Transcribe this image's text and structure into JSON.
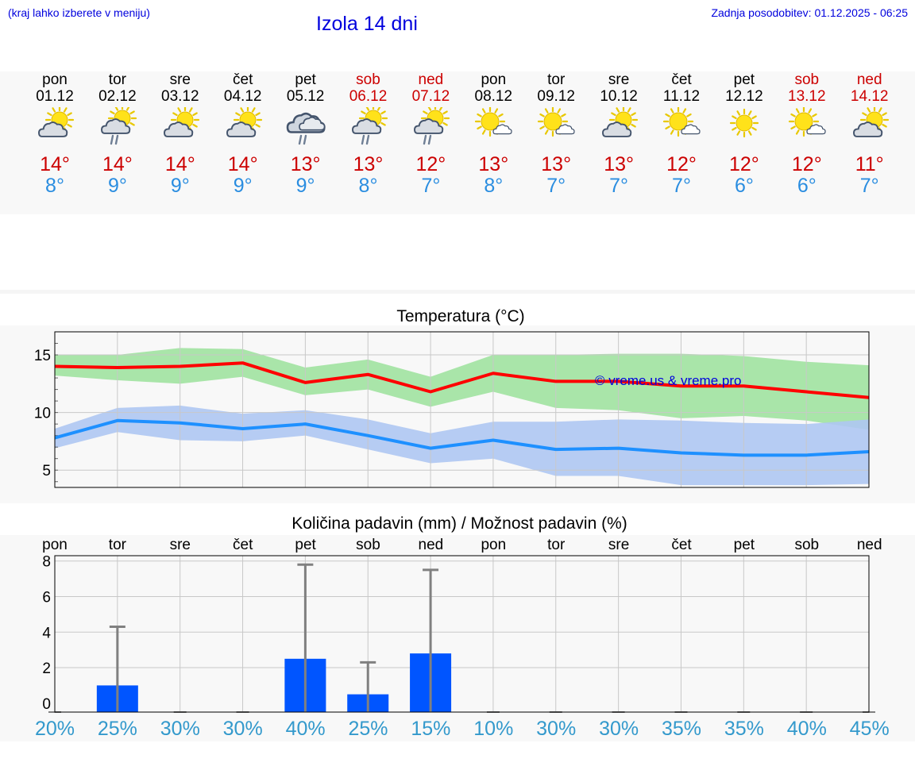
{
  "header": {
    "menu_hint": "(kraj lahko izberete v meniju)",
    "title": "Izola 14 dni",
    "updated": "Zadnja posodobitev: 01.12.2025 - 06:25"
  },
  "days": [
    {
      "name": "pon",
      "date": "01.12",
      "weekend": false,
      "icon": "sun-cloud-icon",
      "tmax": "14°",
      "tmin": "8°"
    },
    {
      "name": "tor",
      "date": "02.12",
      "weekend": false,
      "icon": "sun-cloud-rain-icon",
      "tmax": "14°",
      "tmin": "9°"
    },
    {
      "name": "sre",
      "date": "03.12",
      "weekend": false,
      "icon": "sun-cloud-icon",
      "tmax": "14°",
      "tmin": "9°"
    },
    {
      "name": "čet",
      "date": "04.12",
      "weekend": false,
      "icon": "sun-cloud-icon",
      "tmax": "14°",
      "tmin": "9°"
    },
    {
      "name": "pet",
      "date": "05.12",
      "weekend": false,
      "icon": "cloud-rain-icon",
      "tmax": "13°",
      "tmin": "9°"
    },
    {
      "name": "sob",
      "date": "06.12",
      "weekend": true,
      "icon": "sun-cloud-rain-icon",
      "tmax": "13°",
      "tmin": "8°"
    },
    {
      "name": "ned",
      "date": "07.12",
      "weekend": true,
      "icon": "sun-cloud-rain-icon",
      "tmax": "12°",
      "tmin": "7°"
    },
    {
      "name": "pon",
      "date": "08.12",
      "weekend": false,
      "icon": "sun-small-cloud-icon",
      "tmax": "13°",
      "tmin": "8°"
    },
    {
      "name": "tor",
      "date": "09.12",
      "weekend": false,
      "icon": "sun-small-cloud-icon",
      "tmax": "13°",
      "tmin": "7°"
    },
    {
      "name": "sre",
      "date": "10.12",
      "weekend": false,
      "icon": "sun-cloud-icon",
      "tmax": "13°",
      "tmin": "7°"
    },
    {
      "name": "čet",
      "date": "11.12",
      "weekend": false,
      "icon": "sun-small-cloud-icon",
      "tmax": "12°",
      "tmin": "7°"
    },
    {
      "name": "pet",
      "date": "12.12",
      "weekend": false,
      "icon": "sun-icon",
      "tmax": "12°",
      "tmin": "6°"
    },
    {
      "name": "sob",
      "date": "13.12",
      "weekend": true,
      "icon": "sun-small-cloud-icon",
      "tmax": "12°",
      "tmin": "6°"
    },
    {
      "name": "ned",
      "date": "14.12",
      "weekend": true,
      "icon": "sun-cloud-icon",
      "tmax": "11°",
      "tmin": "7°"
    }
  ],
  "colors": {
    "max_line": "#ff0000",
    "max_band": "#a9e5a9",
    "min_line": "#1e90ff",
    "min_band": "#aec6f2",
    "precip_bar": "#0055ff",
    "error_bar": "#808080",
    "grid": "#c8c8c8"
  },
  "chart_data": [
    {
      "type": "line",
      "title": "Temperatura (°C)",
      "watermark": "© vreme.us & vreme.pro",
      "ylim": [
        3.5,
        17
      ],
      "yticks": [
        5,
        10,
        15
      ],
      "x": [
        0,
        1,
        2,
        3,
        4,
        5,
        6,
        7,
        8,
        9,
        10,
        11,
        12,
        13
      ],
      "series": [
        {
          "name": "max",
          "values": [
            14.0,
            13.9,
            14.0,
            14.3,
            12.6,
            13.3,
            11.8,
            13.4,
            12.7,
            12.7,
            12.3,
            12.3,
            11.8,
            11.3
          ],
          "band_high": [
            15.0,
            15.0,
            15.6,
            15.5,
            13.9,
            14.6,
            13.1,
            15.0,
            15.0,
            15.1,
            15.1,
            14.9,
            14.4,
            14.1
          ],
          "band_low": [
            13.2,
            12.8,
            12.5,
            13.1,
            11.5,
            12.0,
            10.5,
            11.8,
            10.4,
            10.2,
            9.5,
            9.7,
            9.3,
            8.5
          ]
        },
        {
          "name": "min",
          "values": [
            7.8,
            9.3,
            9.1,
            8.6,
            9.0,
            8.0,
            6.9,
            7.6,
            6.8,
            6.9,
            6.5,
            6.3,
            6.3,
            6.6
          ],
          "band_high": [
            8.6,
            10.4,
            10.6,
            9.9,
            10.2,
            9.4,
            8.2,
            9.2,
            9.2,
            9.4,
            9.3,
            9.1,
            9.0,
            9.4
          ],
          "band_low": [
            6.9,
            8.3,
            7.6,
            7.5,
            8.0,
            6.8,
            5.6,
            6.0,
            4.5,
            4.5,
            3.7,
            3.7,
            3.7,
            3.8
          ]
        }
      ]
    },
    {
      "type": "bar",
      "title": "Količina padavin (mm) / Možnost padavin (%)",
      "categories": [
        "pon",
        "tor",
        "sre",
        "čet",
        "pet",
        "sob",
        "ned",
        "pon",
        "tor",
        "sre",
        "čet",
        "pet",
        "sob",
        "ned"
      ],
      "ylim": [
        -0.5,
        8.3
      ],
      "yticks": [
        0,
        2,
        4,
        6,
        8
      ],
      "values": [
        0,
        1.0,
        0,
        0,
        2.5,
        0.5,
        2.8,
        0,
        0,
        0,
        0,
        0,
        0,
        0
      ],
      "error_high": [
        0,
        4.3,
        0,
        0,
        7.8,
        2.3,
        7.5,
        0,
        0,
        0,
        0,
        0,
        0,
        0
      ],
      "probability": [
        "20%",
        "25%",
        "30%",
        "30%",
        "40%",
        "25%",
        "15%",
        "10%",
        "30%",
        "30%",
        "35%",
        "35%",
        "40%",
        "45%"
      ]
    }
  ]
}
